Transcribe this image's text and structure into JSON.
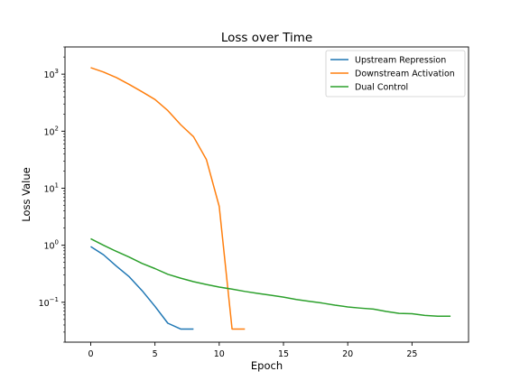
{
  "chart_data": {
    "type": "line",
    "title": "Loss over Time",
    "xlabel": "Epoch",
    "ylabel": "Loss Value",
    "yscale": "log",
    "xlim": [
      -2,
      29.4
    ],
    "ylim": [
      0.02,
      3000
    ],
    "xticks": [
      0,
      5,
      10,
      15,
      20,
      25
    ],
    "yticks": [
      {
        "value": 1000,
        "base": "10",
        "exp": "3"
      },
      {
        "value": 100,
        "base": "10",
        "exp": "2"
      },
      {
        "value": 10,
        "base": "10",
        "exp": "1"
      },
      {
        "value": 1,
        "base": "10",
        "exp": "0"
      },
      {
        "value": 0.1,
        "base": "10",
        "exp": "−1"
      }
    ],
    "grid": false,
    "legend_position": "top-right",
    "series": [
      {
        "name": "Upstream Repression",
        "color": "#1f77b4",
        "x": [
          0,
          1,
          2,
          3,
          4,
          5,
          6,
          7,
          8
        ],
        "values": [
          0.95,
          0.68,
          0.43,
          0.28,
          0.16,
          0.085,
          0.043,
          0.034,
          0.034
        ]
      },
      {
        "name": "Downstream Activation",
        "color": "#ff7f0e",
        "x": [
          0,
          1,
          2,
          3,
          4,
          5,
          6,
          7,
          8,
          9,
          10,
          11,
          12
        ],
        "values": [
          1300,
          1090,
          870,
          660,
          490,
          360,
          230,
          130,
          80,
          32,
          4.8,
          0.034,
          0.034
        ]
      },
      {
        "name": "Dual Control",
        "color": "#2ca02c",
        "x": [
          0,
          1,
          2,
          3,
          4,
          5,
          6,
          7,
          8,
          9,
          10,
          11,
          12,
          13,
          14,
          15,
          16,
          17,
          18,
          19,
          20,
          21,
          22,
          23,
          24,
          25,
          26,
          27,
          28
        ],
        "values": [
          1.3,
          1.0,
          0.78,
          0.62,
          0.48,
          0.39,
          0.31,
          0.265,
          0.23,
          0.205,
          0.185,
          0.17,
          0.155,
          0.143,
          0.133,
          0.123,
          0.112,
          0.104,
          0.097,
          0.089,
          0.083,
          0.079,
          0.076,
          0.069,
          0.064,
          0.063,
          0.059,
          0.057,
          0.057
        ]
      }
    ]
  }
}
